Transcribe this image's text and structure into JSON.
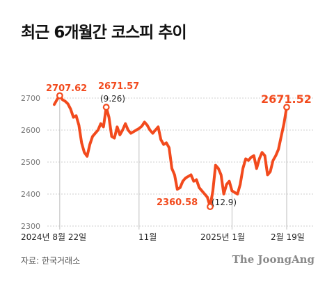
{
  "title": "최근 6개월간 코스피 추이",
  "source": "자료: 한국거래소",
  "logo": "The JoongAng",
  "colors": {
    "line": "#f24a1d",
    "grid": "#cfcfcf",
    "marker_line": "#bdbdbd"
  },
  "chart_data": {
    "type": "line",
    "title": "최근 6개월간 코스피 추이",
    "xlabel": "",
    "ylabel": "",
    "ylim": [
      2300,
      2750
    ],
    "yticks": [
      2300,
      2400,
      2500,
      2600,
      2700
    ],
    "x_tick_labels": [
      "2024년 8월 22일",
      "11월",
      "2025년 1월",
      "2월 19일"
    ],
    "grid": true,
    "series": [
      {
        "values": [
          2680,
          2695,
          2707.62,
          2695,
          2690,
          2682,
          2665,
          2640,
          2645,
          2615,
          2560,
          2530,
          2518,
          2555,
          2580,
          2590,
          2600,
          2620,
          2610,
          2671.57,
          2640,
          2580,
          2575,
          2610,
          2585,
          2600,
          2620,
          2600,
          2590,
          2595,
          2600,
          2605,
          2612,
          2625,
          2615,
          2600,
          2590,
          2600,
          2610,
          2570,
          2555,
          2560,
          2545,
          2480,
          2460,
          2415,
          2420,
          2440,
          2450,
          2455,
          2460,
          2440,
          2445,
          2420,
          2410,
          2400,
          2390,
          2360.58,
          2410,
          2490,
          2480,
          2460,
          2400,
          2430,
          2440,
          2410,
          2405,
          2400,
          2430,
          2480,
          2510,
          2505,
          2515,
          2520,
          2480,
          2510,
          2530,
          2520,
          2460,
          2470,
          2505,
          2520,
          2540,
          2580,
          2620,
          2671.52
        ],
        "point_labels": [
          {
            "value": "2707.62",
            "note": ""
          },
          {
            "value": "2671.57",
            "note": "(9.26)"
          },
          {
            "value": "2360.58",
            "note": "(12.9)"
          },
          {
            "value": "2671.52",
            "note": ""
          }
        ]
      }
    ]
  }
}
